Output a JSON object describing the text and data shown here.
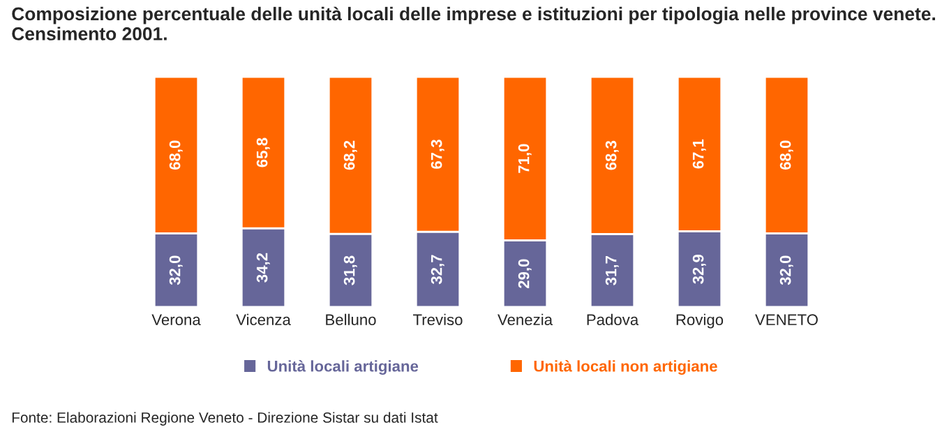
{
  "chart_data": {
    "type": "bar",
    "title": "Composizione percentuale delle unità locali delle imprese e istituzioni per tipologia nelle province venete. Censimento 2001.",
    "categories": [
      "Verona",
      "Vicenza",
      "Belluno",
      "Treviso",
      "Venezia",
      "Padova",
      "Rovigo",
      "VENETO"
    ],
    "stacked": true,
    "series": [
      {
        "name": "Unità locali artigiane",
        "color": "#666699",
        "values": [
          32.0,
          34.2,
          31.8,
          32.7,
          29.0,
          31.7,
          32.9,
          32.0
        ],
        "value_labels": [
          "32,0",
          "34,2",
          "31,8",
          "32,7",
          "29,0",
          "31,7",
          "32,9",
          "32,0"
        ]
      },
      {
        "name": "Unità locali non artigiane",
        "color": "#ff6600",
        "values": [
          68.0,
          65.8,
          68.2,
          67.3,
          71.0,
          68.3,
          67.1,
          68.0
        ],
        "value_labels": [
          "68,0",
          "65,8",
          "68,2",
          "67,3",
          "71,0",
          "68,3",
          "67,1",
          "68,0"
        ]
      }
    ],
    "legend": "bottom",
    "annotations": [
      "Fonte: Elaborazioni Regione Veneto - Direzione Sistar su dati Istat"
    ]
  }
}
